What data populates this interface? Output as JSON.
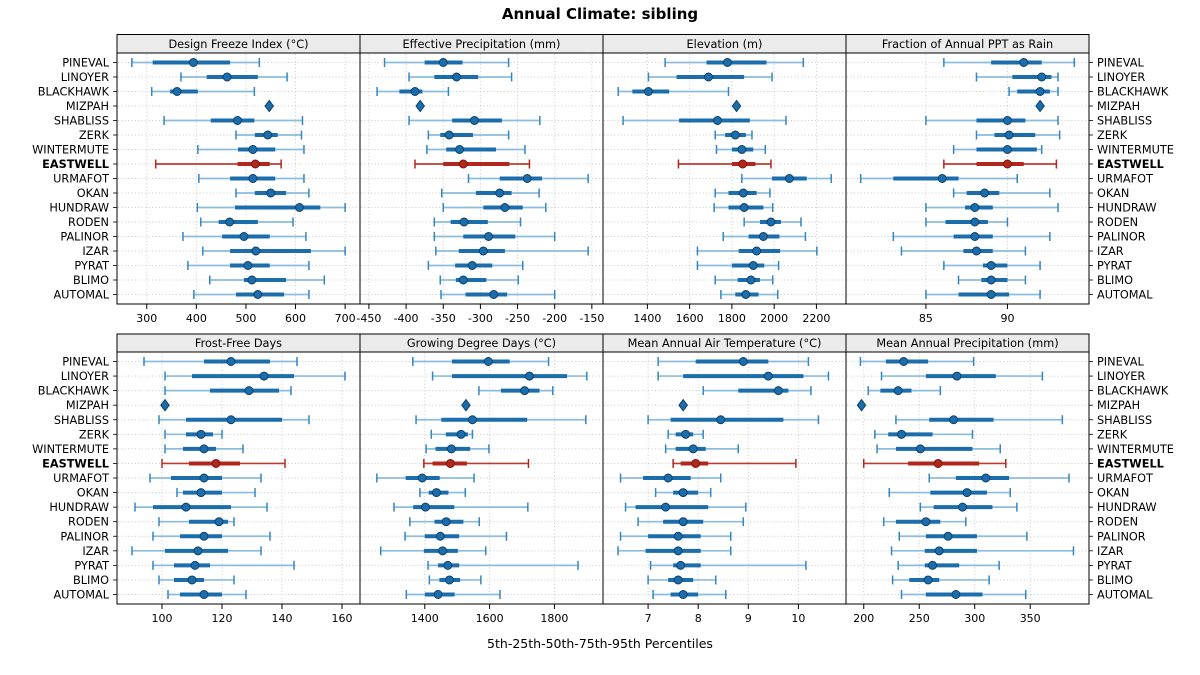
{
  "title": "Annual Climate: sibling",
  "caption": "5th-25th-50th-75th-95th Percentiles",
  "sites": [
    "PINEVAL",
    "LINOYER",
    "BLACKHAWK",
    "MIZPAH",
    "SHABLISS",
    "ZERK",
    "WINTERMUTE",
    "EASTWELL",
    "URMAFOT",
    "OKAN",
    "HUNDRAW",
    "RODEN",
    "PALINOR",
    "IZAR",
    "PYRAT",
    "BLIMO",
    "AUTOMAL"
  ],
  "highlight_site": "EASTWELL",
  "single_value_site": "MIZPAH",
  "colors": {
    "blue_main": "#1c6dab",
    "blue_light": "#8bbdde",
    "blue_cap": "#3585bf",
    "blue_dark": "#0d4069",
    "red_main": "#b2271d",
    "red_light": "#bb3b31",
    "red_dark": "#7a150e",
    "grid": "#c9c9c9",
    "strip_bg": "#ebebeb",
    "border": "#000000"
  },
  "percentiles": [
    5,
    25,
    50,
    75,
    95
  ],
  "chart_data": [
    {
      "type": "percentile-dot",
      "title": "Design Freeze Index (°C)",
      "xlim": [
        240,
        730
      ],
      "ticks": [
        300,
        400,
        500,
        600,
        700
      ],
      "values": [
        [
          270,
          312,
          394,
          468,
          527
        ],
        [
          369,
          421,
          462,
          524,
          583
        ],
        [
          310,
          347,
          361,
          403,
          517
        ],
        [
          547
        ],
        [
          335,
          429,
          483,
          517,
          614
        ],
        [
          480,
          518,
          544,
          564,
          612
        ],
        [
          403,
          484,
          514,
          559,
          617
        ],
        [
          318,
          483,
          519,
          548,
          571
        ],
        [
          405,
          468,
          514,
          559,
          617
        ],
        [
          480,
          518,
          550,
          581,
          627
        ],
        [
          402,
          478,
          608,
          650,
          700
        ],
        [
          409,
          445,
          467,
          524,
          595
        ],
        [
          373,
          452,
          496,
          548,
          621
        ],
        [
          413,
          468,
          520,
          631,
          700
        ],
        [
          383,
          468,
          504,
          548,
          627
        ],
        [
          427,
          496,
          512,
          581,
          658
        ],
        [
          395,
          480,
          524,
          577,
          627
        ]
      ]
    },
    {
      "type": "percentile-dot",
      "title": "Effective Precipitation (mm)",
      "xlim": [
        -462,
        -135
      ],
      "ticks": [
        -450,
        -400,
        -350,
        -300,
        -250,
        -200,
        -150
      ],
      "values": [
        [
          -429,
          -375,
          -350,
          -324,
          -262
        ],
        [
          -396,
          -362,
          -332,
          -303,
          -258
        ],
        [
          -439,
          -409,
          -388,
          -378,
          -343
        ],
        [
          -381
        ],
        [
          -396,
          -338,
          -308,
          -271,
          -220
        ],
        [
          -370,
          -354,
          -342,
          -310,
          -262
        ],
        [
          -372,
          -346,
          -328,
          -279,
          -240
        ],
        [
          -388,
          -350,
          -323,
          -261,
          -234
        ],
        [
          -316,
          -274,
          -237,
          -217,
          -155
        ],
        [
          -352,
          -306,
          -274,
          -258,
          -221
        ],
        [
          -350,
          -296,
          -267,
          -243,
          -212
        ],
        [
          -362,
          -340,
          -322,
          -290,
          -246
        ],
        [
          -362,
          -323,
          -289,
          -253,
          -200
        ],
        [
          -360,
          -329,
          -296,
          -267,
          -155
        ],
        [
          -370,
          -334,
          -311,
          -284,
          -243
        ],
        [
          -354,
          -333,
          -323,
          -292,
          -249
        ],
        [
          -353,
          -320,
          -282,
          -264,
          -200
        ]
      ]
    },
    {
      "type": "percentile-dot",
      "title": "Elevation (m)",
      "xlim": [
        1190,
        2340
      ],
      "ticks": [
        1400,
        1600,
        1800,
        2000,
        2200
      ],
      "values": [
        [
          1484,
          1680,
          1779,
          1964,
          2138
        ],
        [
          1405,
          1538,
          1689,
          1858,
          1990
        ],
        [
          1262,
          1329,
          1405,
          1503,
          1784
        ],
        [
          1822
        ],
        [
          1285,
          1550,
          1732,
          1885,
          2056
        ],
        [
          1721,
          1768,
          1816,
          1866,
          1895
        ],
        [
          1727,
          1800,
          1847,
          1901,
          1958
        ],
        [
          1547,
          1800,
          1851,
          1911,
          1985
        ],
        [
          1847,
          1990,
          2072,
          2154,
          2270
        ],
        [
          1721,
          1784,
          1854,
          1917,
          1980
        ],
        [
          1716,
          1784,
          1858,
          1949,
          1993
        ],
        [
          1858,
          1933,
          1985,
          2032,
          2127
        ],
        [
          1759,
          1879,
          1949,
          2025,
          2148
        ],
        [
          1637,
          1832,
          1917,
          2028,
          2202
        ],
        [
          1637,
          1800,
          1901,
          1953,
          2021
        ],
        [
          1721,
          1827,
          1890,
          1933,
          1993
        ],
        [
          1748,
          1816,
          1866,
          1926,
          2017
        ]
      ]
    },
    {
      "type": "percentile-dot",
      "title": "Fraction of Annual PPT as Rain",
      "xlim": [
        80.1,
        95.0
      ],
      "ticks": [
        85,
        90
      ],
      "values": [
        [
          86.1,
          89.0,
          91.0,
          92.1,
          94.1
        ],
        [
          88.1,
          90.3,
          92.1,
          92.7,
          93.1
        ],
        [
          90.1,
          90.6,
          92.0,
          92.6,
          93.1
        ],
        [
          92.0
        ],
        [
          85.0,
          88.1,
          90.0,
          91.1,
          93.1
        ],
        [
          88.1,
          89.2,
          90.1,
          91.7,
          93.2
        ],
        [
          86.7,
          88.1,
          90.0,
          91.8,
          92.1
        ],
        [
          86.1,
          88.1,
          90.0,
          91.0,
          93.0
        ],
        [
          81.0,
          83.0,
          86.0,
          87.0,
          90.6
        ],
        [
          86.7,
          87.5,
          88.6,
          89.5,
          92.6
        ],
        [
          85.0,
          87.4,
          88.0,
          89.1,
          93.1
        ],
        [
          85.0,
          86.2,
          88.0,
          88.8,
          90.0
        ],
        [
          83.0,
          86.7,
          88.0,
          89.1,
          92.6
        ],
        [
          83.5,
          87.3,
          88.1,
          89.1,
          91.1
        ],
        [
          86.1,
          88.5,
          89.0,
          90.0,
          92.0
        ],
        [
          87.0,
          88.4,
          89.0,
          90.0,
          91.1
        ],
        [
          85.0,
          87.0,
          89.0,
          90.1,
          92.0
        ]
      ]
    },
    {
      "type": "percentile-dot",
      "title": "Frost-Free Days",
      "xlim": [
        85,
        166
      ],
      "ticks": [
        100,
        120,
        140,
        160
      ],
      "values": [
        [
          94,
          114,
          123,
          136,
          145
        ],
        [
          101,
          110,
          134,
          144,
          161
        ],
        [
          101,
          116,
          129,
          139,
          143
        ],
        [
          101
        ],
        [
          99,
          108,
          123,
          140,
          149
        ],
        [
          101,
          108,
          113,
          117,
          120
        ],
        [
          101,
          107,
          114,
          118,
          127
        ],
        [
          100,
          109,
          118,
          126,
          141
        ],
        [
          96,
          103,
          114,
          120,
          133
        ],
        [
          105,
          107,
          113,
          120,
          131
        ],
        [
          91,
          97,
          108,
          123,
          135
        ],
        [
          99,
          109,
          119,
          122,
          124
        ],
        [
          97,
          106,
          114,
          120,
          136
        ],
        [
          90,
          101,
          112,
          122,
          133
        ],
        [
          97,
          104,
          111,
          116,
          144
        ],
        [
          99,
          104,
          110,
          114,
          124
        ],
        [
          102,
          106,
          114,
          120,
          128
        ]
      ]
    },
    {
      "type": "percentile-dot",
      "title": "Growing Degree Days (°C)",
      "xlim": [
        1200,
        1950
      ],
      "ticks": [
        1400,
        1600,
        1800
      ],
      "values": [
        [
          1363,
          1484,
          1596,
          1662,
          1782
        ],
        [
          1424,
          1484,
          1723,
          1839,
          1900
        ],
        [
          1567,
          1635,
          1708,
          1754,
          1795
        ],
        [
          1527
        ],
        [
          1373,
          1451,
          1547,
          1716,
          1897
        ],
        [
          1420,
          1465,
          1512,
          1533,
          1547
        ],
        [
          1404,
          1433,
          1482,
          1540,
          1598
        ],
        [
          1397,
          1424,
          1479,
          1530,
          1720
        ],
        [
          1252,
          1341,
          1392,
          1446,
          1552
        ],
        [
          1385,
          1412,
          1436,
          1473,
          1525
        ],
        [
          1305,
          1364,
          1402,
          1491,
          1718
        ],
        [
          1354,
          1430,
          1466,
          1519,
          1568
        ],
        [
          1339,
          1400,
          1448,
          1506,
          1652
        ],
        [
          1264,
          1397,
          1455,
          1502,
          1588
        ],
        [
          1410,
          1441,
          1471,
          1506,
          1873
        ],
        [
          1414,
          1445,
          1476,
          1509,
          1573
        ],
        [
          1343,
          1400,
          1441,
          1492,
          1632
        ]
      ]
    },
    {
      "type": "percentile-dot",
      "title": "Mean Annual Air Temperature (°C)",
      "xlim": [
        6.1,
        10.95
      ],
      "ticks": [
        7,
        8,
        9,
        10
      ],
      "values": [
        [
          7.2,
          7.95,
          8.9,
          9.4,
          10.2
        ],
        [
          7.2,
          7.7,
          9.4,
          10.1,
          10.6
        ],
        [
          8.1,
          8.8,
          9.6,
          9.8,
          10.25
        ],
        [
          7.7
        ],
        [
          7.0,
          7.45,
          8.45,
          9.7,
          10.4
        ],
        [
          7.4,
          7.55,
          7.75,
          7.9,
          8.1
        ],
        [
          7.35,
          7.55,
          7.9,
          8.15,
          8.8
        ],
        [
          7.5,
          7.65,
          7.95,
          8.2,
          9.95
        ],
        [
          6.45,
          6.9,
          7.4,
          7.85,
          8.45
        ],
        [
          7.15,
          7.5,
          7.7,
          8.0,
          8.25
        ],
        [
          6.55,
          6.75,
          7.35,
          8.2,
          8.95
        ],
        [
          6.8,
          7.3,
          7.7,
          8.1,
          8.9
        ],
        [
          6.45,
          7.0,
          7.6,
          8.05,
          8.65
        ],
        [
          6.4,
          6.95,
          7.6,
          8.05,
          8.65
        ],
        [
          7.05,
          7.5,
          7.65,
          8.05,
          10.15
        ],
        [
          7.0,
          7.4,
          7.6,
          7.9,
          8.35
        ],
        [
          7.1,
          7.45,
          7.7,
          8.0,
          8.55
        ]
      ]
    },
    {
      "type": "percentile-dot",
      "title": "Mean Annual Precipitation (mm)",
      "xlim": [
        184,
        403
      ],
      "ticks": [
        200,
        250,
        300,
        350
      ],
      "values": [
        [
          197,
          220,
          236,
          258,
          299
        ],
        [
          216,
          256,
          284,
          319,
          361
        ],
        [
          204,
          215,
          231,
          243,
          269
        ],
        [
          198
        ],
        [
          229,
          259,
          281,
          317,
          379
        ],
        [
          210,
          222,
          234,
          262,
          298
        ],
        [
          212,
          229,
          251,
          298,
          323
        ],
        [
          200,
          240,
          267,
          304,
          328
        ],
        [
          259,
          283,
          310,
          331,
          385
        ],
        [
          223,
          260,
          293,
          311,
          332
        ],
        [
          251,
          263,
          289,
          316,
          338
        ],
        [
          218,
          229,
          256,
          269,
          292
        ],
        [
          232,
          256,
          276,
          302,
          347
        ],
        [
          225,
          255,
          268,
          302,
          389
        ],
        [
          231,
          255,
          262,
          286,
          322
        ],
        [
          226,
          241,
          258,
          268,
          313
        ],
        [
          234,
          256,
          283,
          307,
          346
        ]
      ]
    }
  ]
}
